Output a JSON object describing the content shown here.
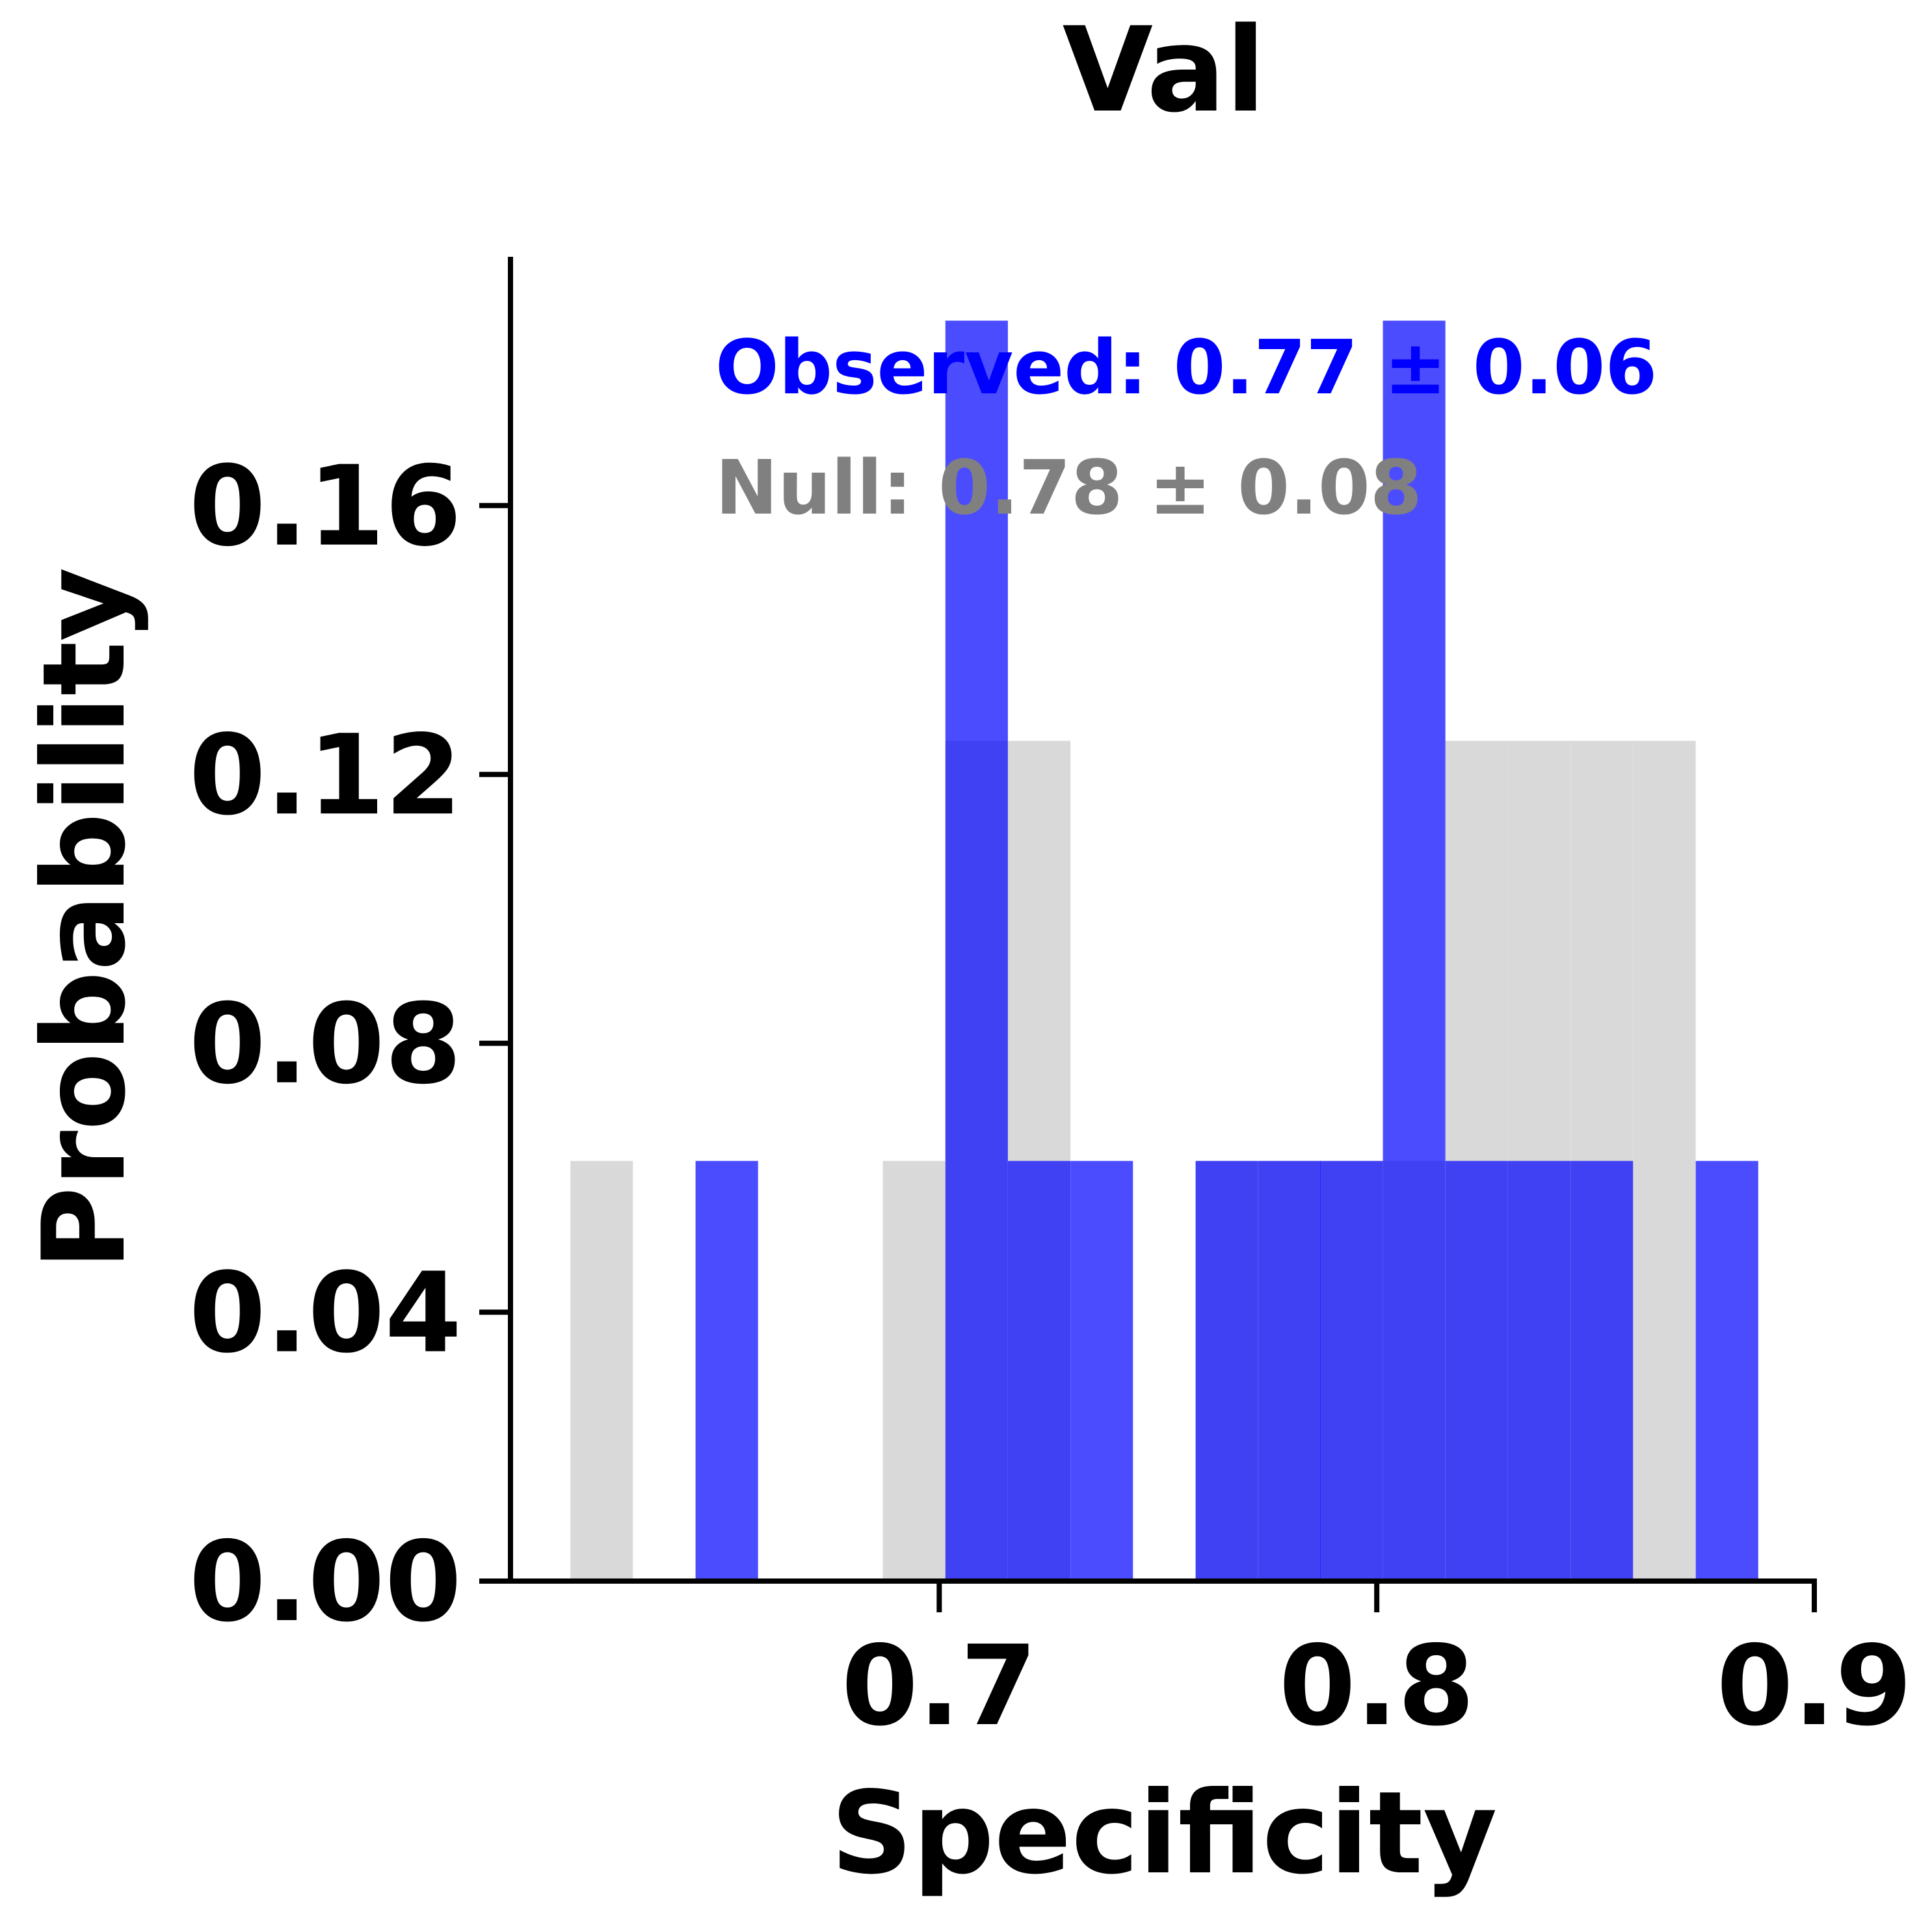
{
  "chart_data": {
    "type": "bar",
    "title": "Val",
    "xlabel": "Specificity",
    "ylabel": "Probability",
    "xlim": [
      0.602,
      0.9
    ],
    "ylim": [
      0,
      0.197
    ],
    "xticks": [
      {
        "value": 0.7,
        "label": "0.7"
      },
      {
        "value": 0.8,
        "label": "0.8"
      },
      {
        "value": 0.9,
        "label": "0.9"
      }
    ],
    "yticks": [
      {
        "value": 0.0,
        "label": "0.00"
      },
      {
        "value": 0.04,
        "label": "0.04"
      },
      {
        "value": 0.08,
        "label": "0.08"
      },
      {
        "value": 0.12,
        "label": "0.12"
      },
      {
        "value": 0.16,
        "label": "0.16"
      }
    ],
    "bin_width": 0.01429,
    "grid": false,
    "colors": {
      "null": "#cccccc",
      "observed": "#0000ff",
      "axis": "#000000"
    },
    "series": [
      {
        "name": "Null",
        "stat_label": "Null: 0.78 ± 0.08",
        "color": "#bfbfbf",
        "opacity": 0.6,
        "bins": [
          {
            "x": 0.6157,
            "y": 0.0625
          },
          {
            "x": 0.6871,
            "y": 0.0625
          },
          {
            "x": 0.7014,
            "y": 0.125
          },
          {
            "x": 0.7157,
            "y": 0.125
          },
          {
            "x": 0.7586,
            "y": 0.0625
          },
          {
            "x": 0.7729,
            "y": 0.0625
          },
          {
            "x": 0.7871,
            "y": 0.0625
          },
          {
            "x": 0.8014,
            "y": 0.0625
          },
          {
            "x": 0.8157,
            "y": 0.125
          },
          {
            "x": 0.83,
            "y": 0.125
          },
          {
            "x": 0.8443,
            "y": 0.125
          },
          {
            "x": 0.8586,
            "y": 0.125
          }
        ]
      },
      {
        "name": "Observed",
        "stat_label": "Observed: 0.77 ± 0.06",
        "color": "#0000ff",
        "opacity": 0.7,
        "bins": [
          {
            "x": 0.6443,
            "y": 0.0625
          },
          {
            "x": 0.7014,
            "y": 0.1875
          },
          {
            "x": 0.7157,
            "y": 0.0625
          },
          {
            "x": 0.73,
            "y": 0.0625
          },
          {
            "x": 0.7586,
            "y": 0.0625
          },
          {
            "x": 0.7729,
            "y": 0.0625
          },
          {
            "x": 0.7871,
            "y": 0.0625
          },
          {
            "x": 0.8014,
            "y": 0.1875
          },
          {
            "x": 0.8157,
            "y": 0.0625
          },
          {
            "x": 0.83,
            "y": 0.0625
          },
          {
            "x": 0.8443,
            "y": 0.0625
          },
          {
            "x": 0.8729,
            "y": 0.0625
          }
        ]
      }
    ]
  }
}
